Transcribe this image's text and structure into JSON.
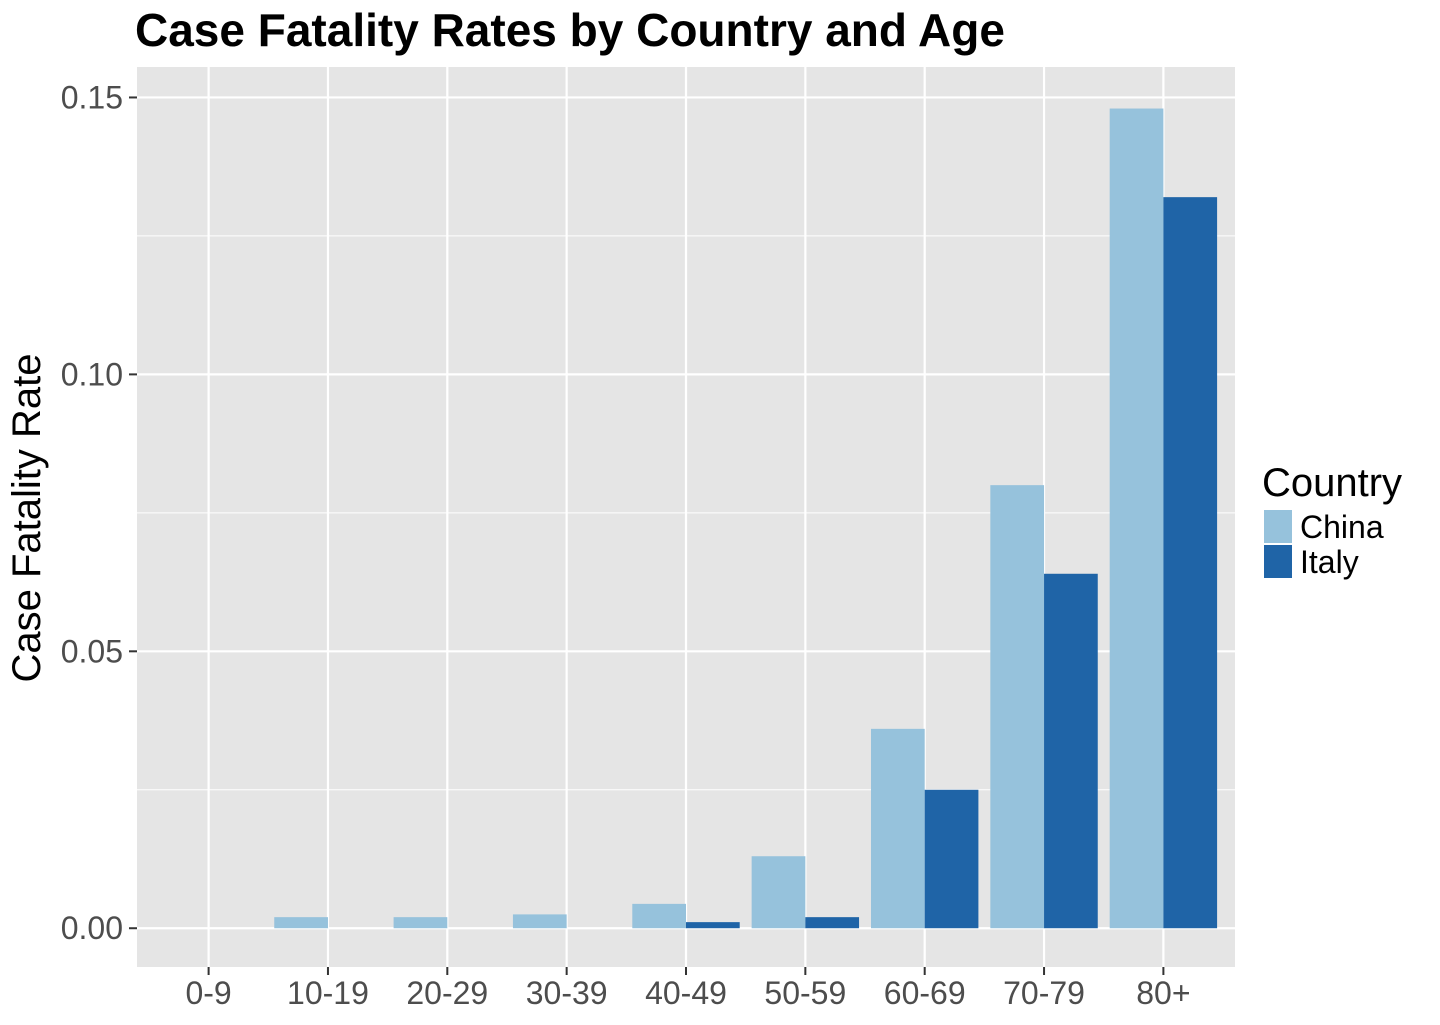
{
  "chart_data": {
    "type": "bar",
    "title": "Case Fatality Rates by Country and Age",
    "xlabel": "",
    "ylabel": "Case Fatality Rate",
    "categories": [
      "0-9",
      "10-19",
      "20-29",
      "30-39",
      "40-49",
      "50-59",
      "60-69",
      "70-79",
      "80+"
    ],
    "series": [
      {
        "name": "China",
        "color": "#96c2dc",
        "values": [
          0.0,
          0.002,
          0.002,
          0.0025,
          0.0044,
          0.013,
          0.036,
          0.08,
          0.148
        ]
      },
      {
        "name": "Italy",
        "color": "#1f64a7",
        "values": [
          0.0,
          0.0,
          0.0,
          0.0,
          0.0011,
          0.002,
          0.025,
          0.064,
          0.132
        ]
      }
    ],
    "ylim": [
      -0.007,
      0.1555
    ],
    "yticks": [
      0.0,
      0.05,
      0.1,
      0.15
    ],
    "ytick_labels": [
      "0.00",
      "0.05",
      "0.10",
      "0.15"
    ],
    "grid": true,
    "legend": {
      "title": "Country",
      "position": "right"
    },
    "colors": {
      "panel": "#e5e5e5",
      "grid": "#ffffff"
    }
  }
}
